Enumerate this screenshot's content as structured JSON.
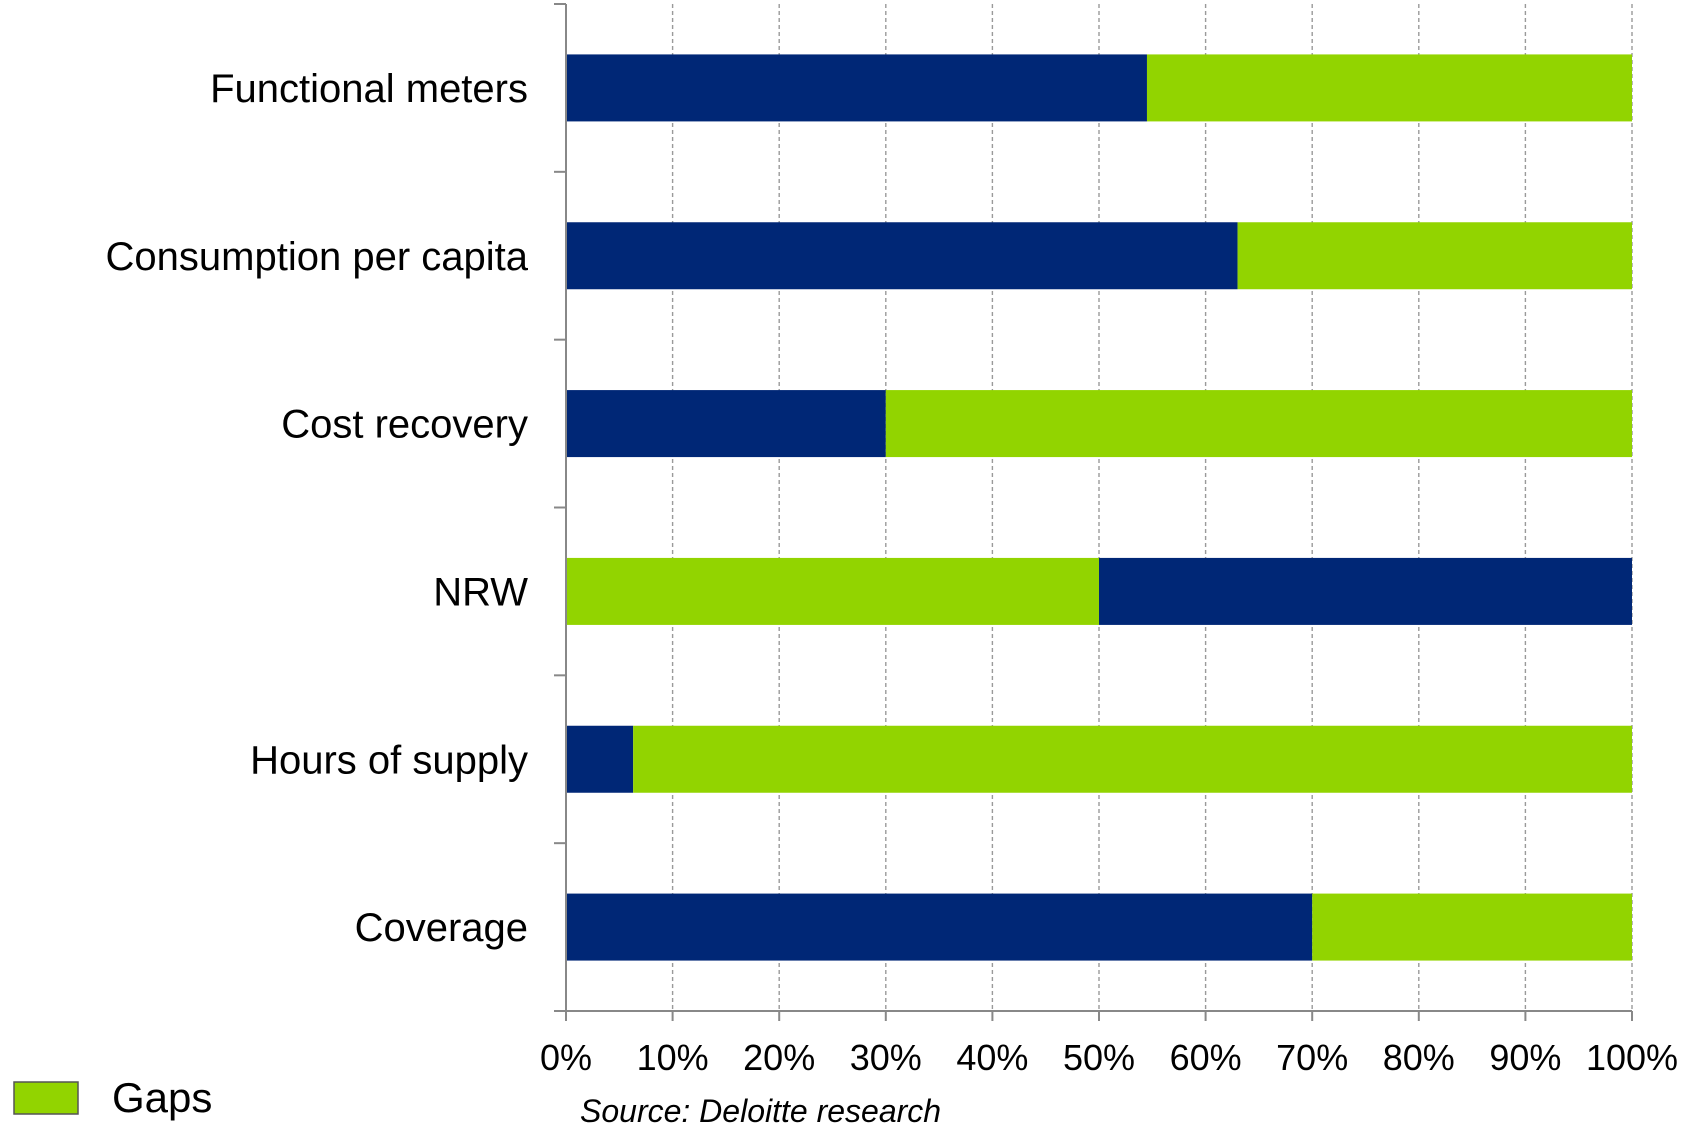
{
  "chart_data": {
    "type": "bar",
    "orientation": "horizontal",
    "stacked": true,
    "categories": [
      "Functional meters",
      "Consumption per capita",
      "Cost recovery",
      "NRW",
      "Hours of supply",
      "Coverage"
    ],
    "series": [
      {
        "key": "first",
        "color": "#002776",
        "values": [
          54.5,
          63,
          30,
          0,
          6.3,
          70
        ]
      },
      {
        "name": "Gaps",
        "color": "#92d400",
        "values": [
          45.5,
          37,
          70,
          50,
          93.7,
          30
        ]
      },
      {
        "key": "nrw_tail",
        "color": "#002776",
        "values": [
          0,
          0,
          0,
          50,
          0,
          0
        ]
      }
    ],
    "x_ticks": [
      "0%",
      "10%",
      "20%",
      "30%",
      "40%",
      "50%",
      "60%",
      "70%",
      "80%",
      "90%",
      "100%"
    ],
    "xlim": [
      0,
      100
    ],
    "grid": {
      "vertical": true,
      "style": "dashed"
    },
    "legend": {
      "placement": "bottom-left",
      "entries": [
        "Gaps"
      ]
    },
    "source": "Source: Deloitte research"
  }
}
